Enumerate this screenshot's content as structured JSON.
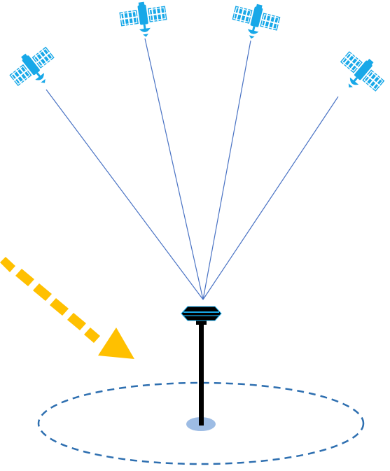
{
  "colors": {
    "satellite": "#18A8E8",
    "signal_line": "#4A73C4",
    "arrow": "#FFC000",
    "receiver_body": "#000000",
    "receiver_accent": "#18A8E8",
    "boundary_dash": "#2E6FB0",
    "ground_spot": "#9DBCE4"
  },
  "icons": {
    "satellite": "satellite-icon",
    "receiver": "gnss-antenna-icon",
    "arrow": "dashed-arrow"
  }
}
